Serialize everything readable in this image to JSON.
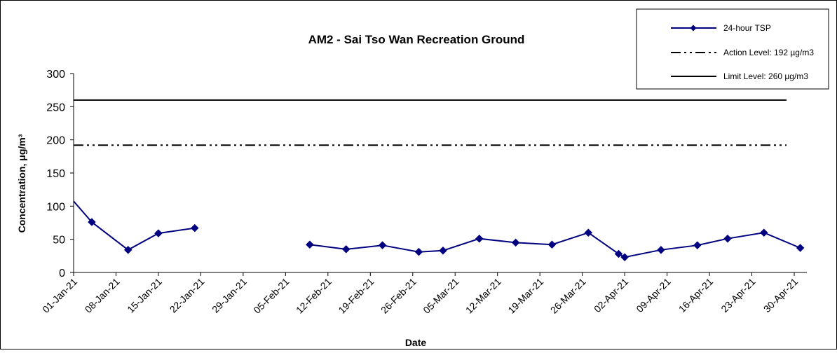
{
  "chart_data": {
    "type": "line",
    "title": "AM2 - Sai Tso Wan Recreation Ground",
    "xlabel": "Date",
    "ylabel": "Concentration, μg/m³",
    "ylim": [
      0,
      300
    ],
    "yticks": [
      0,
      50,
      100,
      150,
      200,
      250,
      300
    ],
    "xlim": [
      "2021-01-01",
      "2021-04-30"
    ],
    "xticks": [
      {
        "date": "2021-01-01",
        "label": "01-Jan-21"
      },
      {
        "date": "2021-01-08",
        "label": "08-Jan-21"
      },
      {
        "date": "2021-01-15",
        "label": "15-Jan-21"
      },
      {
        "date": "2021-01-22",
        "label": "22-Jan-21"
      },
      {
        "date": "2021-01-29",
        "label": "29-Jan-21"
      },
      {
        "date": "2021-02-05",
        "label": "05-Feb-21"
      },
      {
        "date": "2021-02-12",
        "label": "12-Feb-21"
      },
      {
        "date": "2021-02-19",
        "label": "19-Feb-21"
      },
      {
        "date": "2021-02-26",
        "label": "26-Feb-21"
      },
      {
        "date": "2021-03-05",
        "label": "05-Mar-21"
      },
      {
        "date": "2021-03-12",
        "label": "12-Mar-21"
      },
      {
        "date": "2021-03-19",
        "label": "19-Mar-21"
      },
      {
        "date": "2021-03-26",
        "label": "26-Mar-21"
      },
      {
        "date": "2021-04-02",
        "label": "02-Apr-21"
      },
      {
        "date": "2021-04-09",
        "label": "09-Apr-21"
      },
      {
        "date": "2021-04-16",
        "label": "16-Apr-21"
      },
      {
        "date": "2021-04-23",
        "label": "23-Apr-21"
      },
      {
        "date": "2021-04-30",
        "label": "30-Apr-21"
      }
    ],
    "grid": false,
    "legend_position": "top-right",
    "series": [
      {
        "name": "24-hour TSP",
        "color": "#000080",
        "marker": "diamond",
        "segments": [
          [
            {
              "x": "2020-12-31",
              "y": 118
            },
            {
              "x": "2021-01-04",
              "y": 76
            },
            {
              "x": "2021-01-10",
              "y": 34
            },
            {
              "x": "2021-01-15",
              "y": 59
            },
            {
              "x": "2021-01-21",
              "y": 67
            }
          ],
          [
            {
              "x": "2021-02-09",
              "y": 42
            },
            {
              "x": "2021-02-15",
              "y": 35
            },
            {
              "x": "2021-02-21",
              "y": 41
            },
            {
              "x": "2021-02-27",
              "y": 31
            },
            {
              "x": "2021-03-03",
              "y": 33
            },
            {
              "x": "2021-03-09",
              "y": 51
            },
            {
              "x": "2021-03-15",
              "y": 45
            },
            {
              "x": "2021-03-21",
              "y": 42
            },
            {
              "x": "2021-03-27",
              "y": 60
            },
            {
              "x": "2021-04-01",
              "y": 28
            },
            {
              "x": "2021-04-02",
              "y": 23
            },
            {
              "x": "2021-04-08",
              "y": 34
            },
            {
              "x": "2021-04-14",
              "y": 41
            },
            {
              "x": "2021-04-19",
              "y": 51
            },
            {
              "x": "2021-04-25",
              "y": 60
            },
            {
              "x": "2021-05-01",
              "y": 37
            }
          ]
        ]
      },
      {
        "name": "Action Level: 192 µg/m3",
        "color": "#000000",
        "style": "dash-dot-dot",
        "value": 192
      },
      {
        "name": "Limit Level: 260 µg/m3",
        "color": "#000000",
        "style": "solid",
        "value": 260
      }
    ]
  }
}
